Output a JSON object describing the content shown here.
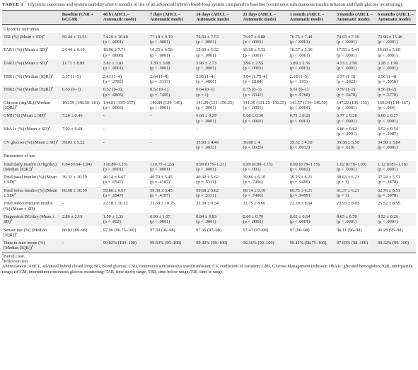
{
  "caption": {
    "label": "TABLE 1",
    "title": "Glycemic outcomes and system usability after 6 months of use of an advanced hybrid closed-loop system compared to baseline (continuous subcutaneous insulin infusion and flash glucose monitoring)."
  },
  "table": {
    "columns": [
      "",
      "Baseline (CSII + isCGM)",
      "48 h (AHCL – Automatic mode)",
      "7 days (AHCL – Automatic mode)",
      "14 days (AHCL – Automatic mode)",
      "21 days (AHCL – Automatic mode)",
      "1 month (AHCL – Automatic mode)",
      "3 months (AHCL – Automatic mode)",
      "6 months (AHCL – Automatic mode)"
    ],
    "rows": [
      {
        "section": "Glycemic outcomes"
      },
      {
        "label": "TIR (%) (Mean ± SD)",
        "note": "a",
        "cells": [
          [
            "59.44 ± 11.53"
          ],
          [
            "74.29 ± 10.40",
            "(p < .0001)"
          ],
          [
            "77.18 ± 9.19",
            "(p < .0001)"
          ],
          [
            "76.50 ± 7.53",
            "(p < .0001)"
          ],
          [
            "76.07 ± 6.88",
            "(p < .0001)"
          ],
          [
            "76.75 ± 7.44",
            "(p < .0001)"
          ],
          [
            "74.93 ± 7.10",
            "(p < .0001)"
          ],
          [
            "73.96 ± 15.46",
            "(p < .0001)"
          ]
        ]
      },
      {
        "label": "TAR1 (%) (Mean ± SD)",
        "note": "a",
        "cells": [
          [
            "24.44 ± 6.19"
          ],
          [
            "18.96 ± 7.71",
            "(p = .0008)"
          ],
          [
            "16.25 ± 6.56",
            "(p < .0001)"
          ],
          [
            "15.93 ± 5.32",
            "(p < .0001)"
          ],
          [
            "16.18 ± 5.52",
            "(p < .0001)"
          ],
          [
            "16.57 ± 5.36",
            "(p < .0001)"
          ],
          [
            "17.55 ± 5.41",
            "(p < .0001)"
          ],
          [
            "16.60 ± 5.60",
            "(p < .0001)"
          ]
        ]
      },
      {
        "label": "TAR2 (%) (Mean ± SD)",
        "note": "a",
        "cells": [
          [
            "11.71 ± 8.89"
          ],
          [
            "3.82 ± 3.83",
            "(p < .0001)"
          ],
          [
            "3.39 ± 3.08",
            "(p < .0001)"
          ],
          [
            "3.96 ± 2.73",
            "(p < .0001)"
          ],
          [
            "3.96 ± 2.55",
            "(p < .0001)"
          ],
          [
            "3.89 ± 2.56",
            "(p < .0001)"
          ],
          [
            "4.33 ± 2.90",
            "(p < .0001)"
          ],
          [
            "3.28 ± 1.90",
            "(p < .0001)"
          ]
        ]
      },
      {
        "label": "TBR1 (%) (Median [IQR])",
        "note": "b",
        "cells": [
          [
            "3.37 (1–5)"
          ],
          [
            "2.43 (1–4)",
            "(p = .2782)"
          ],
          [
            "2.64 (1–4)",
            "(p = .3113)"
          ],
          [
            "2.96 (1–4)",
            "(p = .4866)"
          ],
          [
            "3.04 (1.75–4)",
            "(p = .8184)"
          ],
          [
            "2.18 (1–3)",
            "(p = .193)"
          ],
          [
            "2.37 (1–3)",
            "(p = .2923)"
          ],
          [
            "2.56 (1–4)",
            "(p = .5056)"
          ]
        ]
      },
      {
        "label": "TBR2 (%) (Median [IQR])",
        "note": "b",
        "cells": [
          [
            "0.63 (0–1)"
          ],
          [
            "0.52 (0–1)",
            "(p = .6805)"
          ],
          [
            "0.52 (0–1)",
            "(p = .7495)"
          ],
          [
            "0.64 (0–1)",
            "(p = 1)"
          ],
          [
            "0.75 (0–1)",
            "(p = .6341)"
          ],
          [
            "0.61 (0–1)",
            "(p = .9768)"
          ],
          [
            "0.59 (1–2)",
            "(p = .5478)"
          ],
          [
            "0.56 (1–2)",
            "(p = .3778)"
          ]
        ]
      },
      {
        "label": "Glucose (mg/dL) (Median [IQR])",
        "note": "b",
        "cells": [
          [
            "166.59 (148.50–181)"
          ],
          [
            "144.81 (135–157)",
            "(p < .0003)"
          ],
          [
            "140.89 (129–149)",
            "(p < .0001)"
          ],
          [
            "141.29 (131–150.25)",
            "(p < .0001)"
          ],
          [
            "141.39 (131.25–150.25)",
            "(p < .0001)"
          ],
          [
            "143.57 (134–149.50)",
            "(p < .0004)"
          ],
          [
            "147.22 (136–153)",
            "(p < .0001)"
          ],
          [
            "150.04 (134–167)",
            "(p < .044)"
          ]
        ]
      },
      {
        "label": "GMI (%) (Mean ± SD)",
        "note": "a",
        "cells": [
          [
            "7.26 ± 0.46"
          ],
          [
            "-"
          ],
          [
            "-"
          ],
          [
            "6.68 ± 0.29",
            "(p < .0001)"
          ],
          [
            "6.68 ± 0.30",
            "(p < .0001)"
          ],
          [
            "6.71 ± 0.26",
            "(p < .0001)"
          ],
          [
            "6.77 ± 0.28",
            "(p < .0001)"
          ],
          [
            "6.68 ± 0.27",
            "(p < .0001)"
          ]
        ]
      },
      {
        "label": "HbA1c (%) (Mean ± SD)",
        "note": "a",
        "cells": [
          [
            "7.02 ± 0.68"
          ],
          [
            "-"
          ],
          [
            "-"
          ],
          [
            "-"
          ],
          [
            "-"
          ],
          [
            "-"
          ],
          [
            "6.86 ± 0.62",
            "(p = .2091)"
          ],
          [
            "6.52 ± 0.54",
            "(p = .2987)"
          ]
        ]
      },
      {
        "label": "CV glucose (%) (Mean ± SD)",
        "note": "a",
        "cells": [
          [
            "39.03 ± 5.22"
          ],
          [
            "-"
          ],
          [
            "-"
          ],
          [
            "35.93 ± 4.49",
            "(p < .0032)"
          ],
          [
            "36.08 ± 4",
            "(p < .0025)"
          ],
          [
            "35.32 ± 4.10",
            "(p < .0013)"
          ],
          [
            "35.56 ± 3.50",
            "(p < .029)"
          ],
          [
            "34.50 ± 3.84",
            "(p < .0001)"
          ]
        ]
      },
      {
        "section": "Parameters of use"
      },
      {
        "label": "Total daily insulin (U/kg/day) (Median [IQR])",
        "note": "b",
        "cells": [
          [
            "0.84 (0.64–1.04)"
          ],
          [
            "1 (0.80–1.23)",
            "(p < .0001)"
          ],
          [
            "1 (0.77–1.22)",
            "(p < .0001)"
          ],
          [
            "0.99 (0.79–1.21)",
            "(p < .0001)"
          ],
          [
            "0.99 (0.80–1.15)",
            "(p < .001)"
          ],
          [
            "0.99 (0.79–1.15)",
            "(p < .0002)"
          ],
          [
            "1.02 (0.78–1.09)",
            "(p < .0001)"
          ],
          [
            "1.12 (0.81–1.16)",
            "(p < .0001)"
          ]
        ]
      },
      {
        "label": "Total basal insulin (%) (Mean ± SD)",
        "note": "a",
        "cells": [
          [
            "39.32 ± 10.59"
          ],
          [
            "40.14 ± 6.67",
            "(p = .6547)"
          ],
          [
            "40.70 ± 5.45",
            "(p = .4107)"
          ],
          [
            "40.32 ± 5.62",
            "(p = .5331)"
          ],
          [
            "39.86 ± 6.10",
            "(p = .7496)"
          ],
          [
            "39.25 ± 6.21",
            "(p = .9499)"
          ],
          [
            "38.63 ± 6.21",
            "(p = 1)"
          ],
          [
            "37.24 ± 5.51",
            "(p = .3878)"
          ]
        ]
      },
      {
        "label": "Total bolus insulin (%) (Mean ± SD)",
        "note": "a",
        "cells": [
          [
            "60.68 ± 10.59"
          ],
          [
            "59.86 ± 6.67",
            "(p = .6547)"
          ],
          [
            "59.30 ± 5.45",
            "(p = .4107)"
          ],
          [
            "59.68 ± 5.62",
            "(p = .5331)"
          ],
          [
            "60.14 ± 6.10",
            "(p = .7496)"
          ],
          [
            "60.75 ± 6.21",
            "(p = .9499)"
          ],
          [
            "61.37 ± 6.21",
            "(p = 1)"
          ],
          [
            "62.76 ± 5.51",
            "(p = .3878)"
          ]
        ]
      },
      {
        "label": "Total autocorrection insulin (%) (Mean ± SD)",
        "cells": [
          [
            "-"
          ],
          [
            "22.18 ± 10.12"
          ],
          [
            "21.68 ± 10.25"
          ],
          [
            "22.39 ± 9.34"
          ],
          [
            "22.75 ± 8.66"
          ],
          [
            "22.29 ± 8.64"
          ],
          [
            "23.93 ± 8.03"
          ],
          [
            "25.52 ± 8.55"
          ]
        ]
      },
      {
        "label": "Fingerstick BG/day (Mean ± SD)",
        "note": "a",
        "cells": [
          [
            "2.86 ± 2.19"
          ],
          [
            "1.50 ± 1.31",
            "(p < .002)"
          ],
          [
            "0.90 ± 1.07",
            "(p < .0001)"
          ],
          [
            "0.84 ± 0.83",
            "(p < .0001)"
          ],
          [
            "0.66 ± 0.70",
            "(p < .0001)"
          ],
          [
            "0.62 ± 0.64",
            "(p < .0001)"
          ],
          [
            "0.65 ± 0.70",
            "(p < .0001)"
          ],
          [
            "0.52 ± 0.29",
            "(p < .0001)"
          ]
        ]
      },
      {
        "label": "Sensor use (%) (Median [IQR])",
        "note": "b",
        "cells": [
          [
            "88.93 (89–98)"
          ],
          [
            "97.96 (96.75–100)"
          ],
          [
            "97.39 (96–98)"
          ],
          [
            "97.36 (97–98)"
          ],
          [
            "97.43 (97–98)"
          ],
          [
            "97 (96–98)"
          ],
          [
            "96.11 (96–98)"
          ],
          [
            "96.28 (95–98)"
          ]
        ]
      },
      {
        "label": "Time in auto mode (%) (Median [IQR])",
        "note": "b",
        "cells": [
          [
            "-"
          ],
          [
            "99.82% (100–100)"
          ],
          [
            "99.50% (99–100)"
          ],
          [
            "99.42% (99–100)"
          ],
          [
            "99.36% (99–100)"
          ],
          [
            "99.11% (98.75–100)"
          ],
          [
            "97.69% (98–100)"
          ],
          [
            "99.32% (99–100)"
          ]
        ]
      }
    ]
  },
  "footnotes": [
    {
      "mark": "a",
      "text": "Paired t test."
    },
    {
      "mark": "b",
      "text": "Wilcoxon test."
    }
  ],
  "abbreviations": "Abbreviations: AHCL, advanced hybrid closed loop; BG, blood glucose; CSII, continuous subcutaneous insulin infusion; CV, coefficient of variation; GMI, Glucose Management Indicator; HbA1c, glycated hemoglobin; IQR, interquartile range; isCGM, intermittent continuous glucose monitoring; TAR, time above range; TBR, time below range; TIR, time in range."
}
